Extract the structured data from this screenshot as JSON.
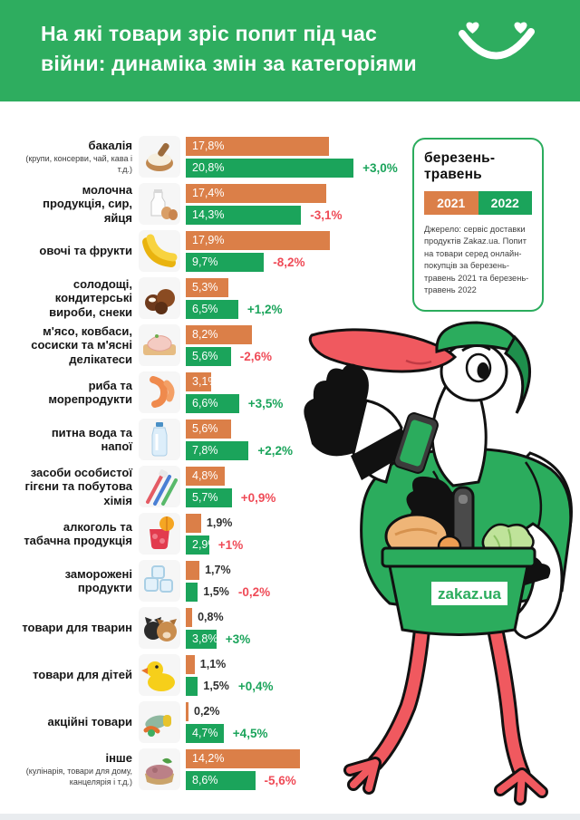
{
  "header": {
    "title_line1": "На які товари зріс попит під час",
    "title_line2": "війни: динаміка змін за категоріями",
    "bg_color": "#2EAD5F"
  },
  "legend": {
    "title": "березень-травень",
    "series": [
      {
        "year": "2021",
        "color": "#DB7F48"
      },
      {
        "year": "2022",
        "color": "#1BA45B"
      }
    ],
    "source": "Джерело: сервіс доставки продуктів Zakaz.ua. Попит на товари серед онлайн-покупців за березень-травень 2021 та березень-травень 2022"
  },
  "mascot": {
    "basket_label": "zakaz.ua"
  },
  "chart_data": {
    "type": "bar",
    "orientation": "horizontal",
    "unit": "%",
    "series_names": [
      "2021",
      "2022"
    ],
    "colors": {
      "2021": "#DB7F48",
      "2022": "#1BA45B",
      "positive_change": "#1BA45B",
      "negative_change": "#EF4B57"
    },
    "xlim": [
      0,
      21
    ],
    "legend_position": "top-right",
    "categories": [
      {
        "label": "бакалія",
        "sublabel": "(крупи, консерви, чай, кава і т.д.)",
        "icon": "flour-scoop-icon",
        "values": [
          17.8,
          20.8
        ],
        "display": [
          "17,8%",
          "20,8%"
        ],
        "change": "+3,0%",
        "change_color": "green"
      },
      {
        "label": "молочна продукція, сир, яйця",
        "sublabel": "",
        "icon": "milk-eggs-icon",
        "values": [
          17.4,
          14.3
        ],
        "display": [
          "17,4%",
          "14,3%"
        ],
        "change": "-3,1%",
        "change_color": "red"
      },
      {
        "label": "овочі та фрукти",
        "sublabel": "",
        "icon": "bananas-icon",
        "values": [
          17.9,
          9.7
        ],
        "display": [
          "17,9%",
          "9,7%"
        ],
        "change": "-8,2%",
        "change_color": "red"
      },
      {
        "label": "солодощі, кондитерські вироби, снеки",
        "sublabel": "",
        "icon": "chocolates-icon",
        "values": [
          5.3,
          6.5
        ],
        "display": [
          "5,3%",
          "6,5%"
        ],
        "change": "+1,2%",
        "change_color": "green"
      },
      {
        "label": "м'ясо, ковбаси, сосиски та м'ясні делікатеси",
        "sublabel": "",
        "icon": "meat-icon",
        "values": [
          8.2,
          5.6
        ],
        "display": [
          "8,2%",
          "5,6%"
        ],
        "change": "-2,6%",
        "change_color": "red"
      },
      {
        "label": "риба та морепродукти",
        "sublabel": "",
        "icon": "shrimp-icon",
        "values": [
          3.1,
          6.6
        ],
        "display": [
          "3,1%",
          "6,6%"
        ],
        "change": "+3,5%",
        "change_color": "green"
      },
      {
        "label": "питна вода та напої",
        "sublabel": "",
        "icon": "water-bottle-icon",
        "values": [
          5.6,
          7.8
        ],
        "display": [
          "5,6%",
          "7,8%"
        ],
        "change": "+2,2%",
        "change_color": "green"
      },
      {
        "label": "засоби особистої гігєни та побутова хімія",
        "sublabel": "",
        "icon": "toothbrushes-icon",
        "values": [
          4.8,
          5.7
        ],
        "display": [
          "4,8%",
          "5,7%"
        ],
        "change": "+0,9%",
        "change_color": "red"
      },
      {
        "label": "алкоголь та табачна продукція",
        "sublabel": "",
        "icon": "cocktail-icon",
        "values": [
          1.9,
          2.9
        ],
        "display": [
          "1,9%",
          "2,9%"
        ],
        "change": "+1%",
        "change_color": "red"
      },
      {
        "label": "заморожені продукти",
        "sublabel": "",
        "icon": "ice-cubes-icon",
        "values": [
          1.7,
          1.5
        ],
        "display": [
          "1,7%",
          "1,5%"
        ],
        "change": "-0,2%",
        "change_color": "red"
      },
      {
        "label": "товари для тварин",
        "sublabel": "",
        "icon": "pets-icon",
        "values": [
          0.8,
          3.8
        ],
        "display": [
          "0,8%",
          "3,8%"
        ],
        "change": "+3%",
        "change_color": "green"
      },
      {
        "label": "товари для дітей",
        "sublabel": "",
        "icon": "rubber-duck-icon",
        "values": [
          1.1,
          1.5
        ],
        "display": [
          "1,1%",
          "1,5%"
        ],
        "change": "+0,4%",
        "change_color": "green"
      },
      {
        "label": "акційні товари",
        "sublabel": "",
        "icon": "promo-foods-icon",
        "values": [
          0.2,
          4.7
        ],
        "display": [
          "0,2%",
          "4,7%"
        ],
        "change": "+4,5%",
        "change_color": "green"
      },
      {
        "label": "інше",
        "sublabel": "(кулінарія, товари для дому, канцелярія і т.д.)",
        "icon": "sandwich-icon",
        "values": [
          14.2,
          8.6
        ],
        "display": [
          "14,2%",
          "8,6%"
        ],
        "change": "-5,6%",
        "change_color": "red"
      }
    ]
  }
}
